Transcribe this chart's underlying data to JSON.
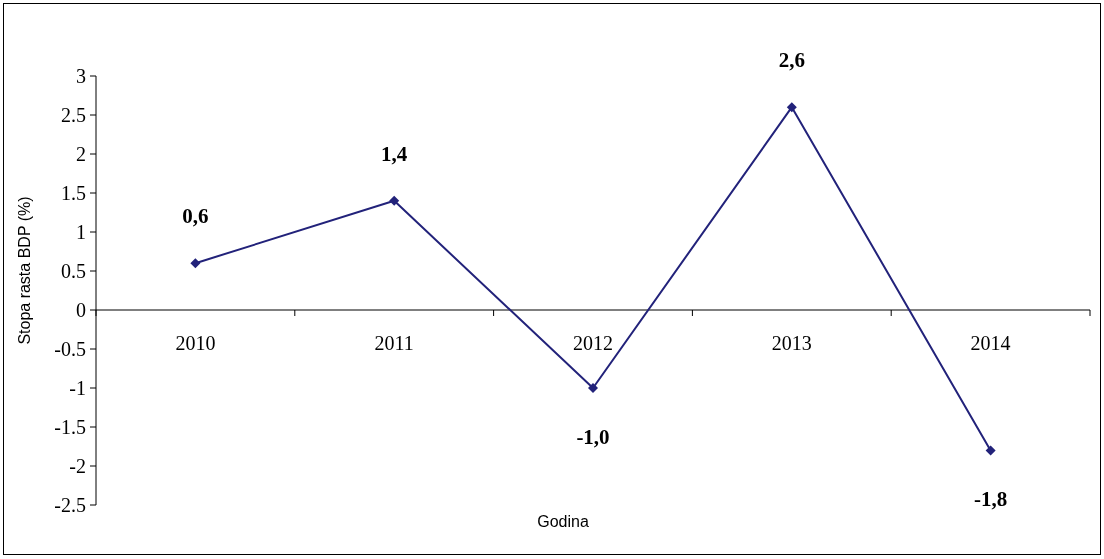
{
  "chart_data": {
    "type": "line",
    "xlabel": "Godina",
    "ylabel": "Stopa rasta BDP (%)",
    "categories": [
      "2010",
      "2011",
      "2012",
      "2013",
      "2014"
    ],
    "series": [
      {
        "color": "#22227a",
        "values": [
          0.6,
          1.4,
          -1.0,
          2.6,
          -1.8
        ],
        "value_labels": [
          "0,6",
          "1,4",
          "-1,0",
          "2,6",
          "-1,8"
        ]
      }
    ],
    "ylim": [
      -2.5,
      3
    ],
    "yticks": [
      -2.5,
      -2,
      -1.5,
      -1,
      -0.5,
      0,
      0.5,
      1,
      1.5,
      2,
      2.5,
      3
    ],
    "grid": false,
    "marker": "diamond",
    "line_style": "solid"
  }
}
